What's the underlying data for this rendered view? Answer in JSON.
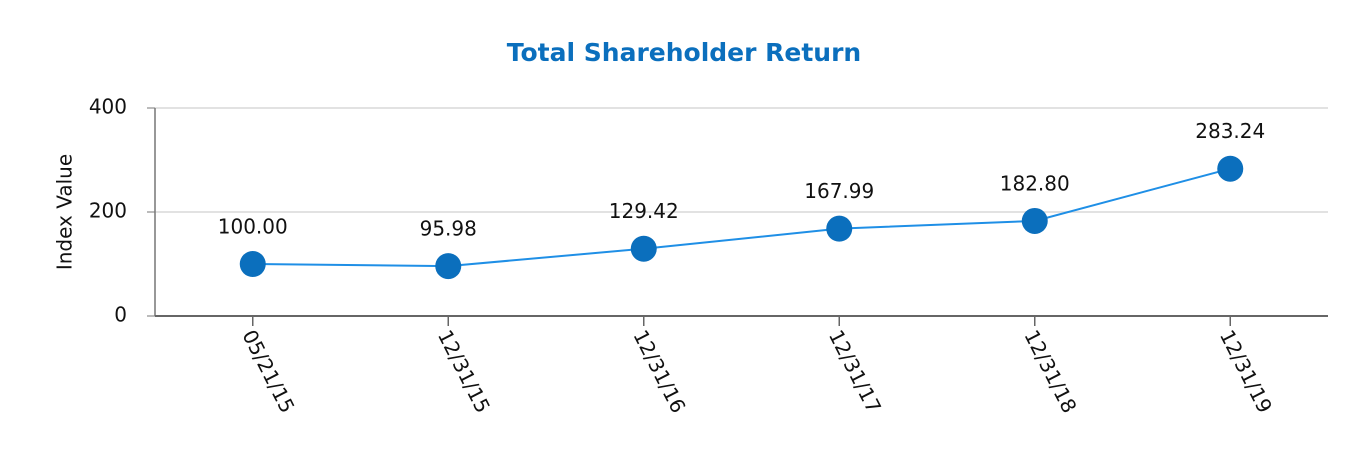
{
  "chart_data": {
    "type": "line",
    "title": "Total Shareholder Return",
    "title_color": "#0b6fbd",
    "y_label": "Index Value",
    "categories": [
      "05/21/15",
      "12/31/15",
      "12/31/16",
      "12/31/17",
      "12/31/18",
      "12/31/19"
    ],
    "values": [
      100.0,
      95.98,
      129.42,
      167.99,
      182.8,
      283.24
    ],
    "value_labels": [
      "100.00",
      "95.98",
      "129.42",
      "167.99",
      "182.80",
      "283.24"
    ],
    "color": "#1f8fe6",
    "marker_color": "#0b6fbd",
    "ylim": [
      0,
      400
    ],
    "yticks": [
      0,
      200,
      400
    ],
    "grid": true
  }
}
